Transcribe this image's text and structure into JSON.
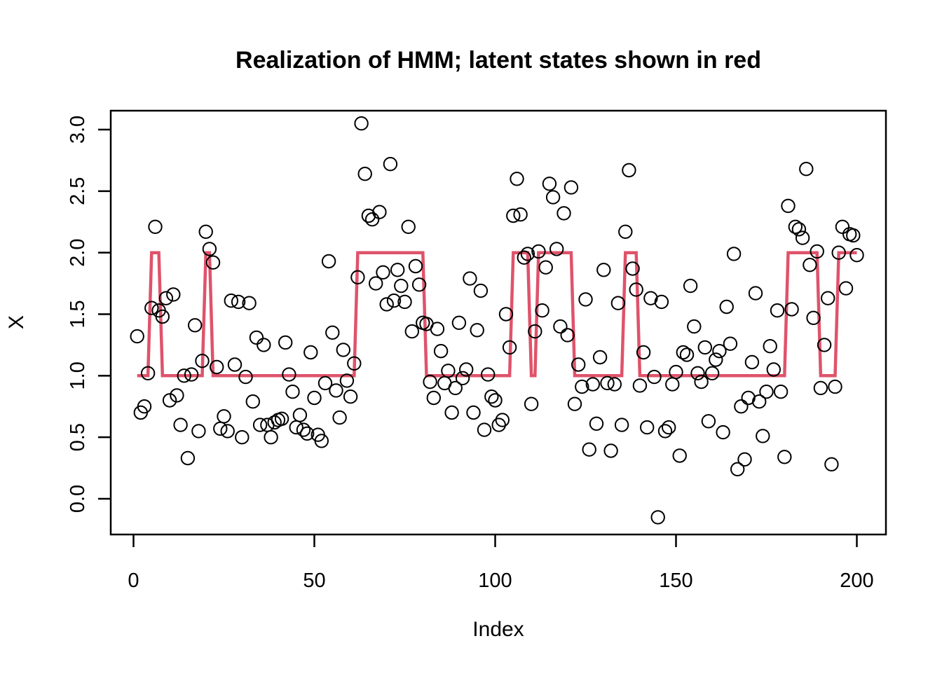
{
  "title": "Realization of HMM; latent states shown in red",
  "colors": {
    "state_line": "#DF536B",
    "points_stroke": "#000000",
    "frame": "#000000",
    "background": "#ffffff"
  },
  "chart_data": {
    "type": "scatter",
    "title": "Realization of HMM; latent states shown in red",
    "xlabel": "Index",
    "ylabel": "X",
    "x_ticks": [
      0,
      50,
      100,
      150,
      200
    ],
    "y_ticks": [
      "0.0",
      "0.5",
      "1.0",
      "1.5",
      "2.0",
      "2.5",
      "3.0"
    ],
    "xlim": [
      -7,
      208
    ],
    "ylim": [
      -0.29,
      3.15
    ],
    "grid": false,
    "legend": "none",
    "x_start": 1,
    "observations": [
      1.32,
      0.7,
      0.75,
      1.02,
      1.55,
      2.21,
      1.53,
      1.48,
      1.63,
      0.8,
      1.66,
      0.84,
      0.6,
      1.0,
      0.33,
      1.01,
      1.41,
      0.55,
      1.12,
      2.17,
      2.03,
      1.92,
      1.07,
      0.57,
      0.67,
      0.55,
      1.61,
      1.09,
      1.6,
      0.5,
      0.99,
      1.59,
      0.79,
      1.31,
      0.6,
      1.25,
      0.6,
      0.5,
      0.62,
      0.64,
      0.65,
      1.27,
      1.01,
      0.87,
      0.58,
      0.68,
      0.56,
      0.53,
      1.19,
      0.82,
      0.52,
      0.47,
      0.94,
      1.93,
      1.35,
      0.88,
      0.66,
      1.21,
      0.96,
      0.83,
      1.1,
      1.8,
      3.05,
      2.64,
      2.3,
      2.27,
      1.75,
      2.33,
      1.84,
      1.58,
      2.72,
      1.61,
      1.86,
      1.73,
      1.6,
      2.21,
      1.36,
      1.89,
      1.74,
      1.43,
      1.42,
      0.95,
      0.82,
      1.38,
      1.2,
      0.94,
      1.04,
      0.7,
      0.9,
      1.43,
      0.98,
      1.05,
      1.79,
      0.7,
      1.37,
      1.69,
      0.56,
      1.01,
      0.83,
      0.8,
      0.6,
      0.64,
      1.5,
      1.23,
      2.3,
      2.6,
      2.31,
      1.96,
      1.99,
      0.77,
      1.36,
      2.01,
      1.53,
      1.88,
      2.56,
      2.45,
      2.03,
      1.4,
      2.32,
      1.33,
      2.53,
      0.77,
      1.09,
      0.91,
      1.62,
      0.4,
      0.93,
      0.61,
      1.15,
      1.86,
      0.94,
      0.39,
      0.93,
      1.59,
      0.6,
      2.17,
      2.67,
      1.87,
      1.7,
      0.92,
      1.19,
      0.58,
      1.63,
      0.99,
      -0.15,
      1.6,
      0.55,
      0.58,
      0.93,
      1.03,
      0.35,
      1.19,
      1.17,
      1.73,
      1.4,
      1.02,
      0.95,
      1.23,
      0.63,
      1.02,
      1.13,
      1.2,
      0.54,
      1.56,
      1.26,
      1.99,
      0.24,
      0.75,
      0.32,
      0.82,
      1.11,
      1.67,
      0.79,
      0.51,
      0.87,
      1.24,
      1.05,
      1.53,
      0.87,
      0.34,
      2.38,
      1.54,
      2.21,
      2.19,
      2.12,
      2.68,
      1.9,
      1.47,
      2.01,
      0.9,
      1.25,
      1.63,
      0.28,
      0.91,
      2.0,
      2.21,
      1.71,
      2.15,
      2.14,
      1.98
    ],
    "state_segments": [
      {
        "from": 1,
        "to": 4,
        "state": 1
      },
      {
        "from": 5,
        "to": 7,
        "state": 2
      },
      {
        "from": 8,
        "to": 19,
        "state": 1
      },
      {
        "from": 20,
        "to": 21,
        "state": 2
      },
      {
        "from": 22,
        "to": 61,
        "state": 1
      },
      {
        "from": 62,
        "to": 80,
        "state": 2
      },
      {
        "from": 81,
        "to": 104,
        "state": 1
      },
      {
        "from": 105,
        "to": 109,
        "state": 2
      },
      {
        "from": 110,
        "to": 111,
        "state": 1
      },
      {
        "from": 112,
        "to": 121,
        "state": 2
      },
      {
        "from": 122,
        "to": 135,
        "state": 1
      },
      {
        "from": 136,
        "to": 139,
        "state": 2
      },
      {
        "from": 140,
        "to": 180,
        "state": 1
      },
      {
        "from": 181,
        "to": 189,
        "state": 2
      },
      {
        "from": 190,
        "to": 194,
        "state": 1
      },
      {
        "from": 195,
        "to": 200,
        "state": 2
      }
    ]
  }
}
